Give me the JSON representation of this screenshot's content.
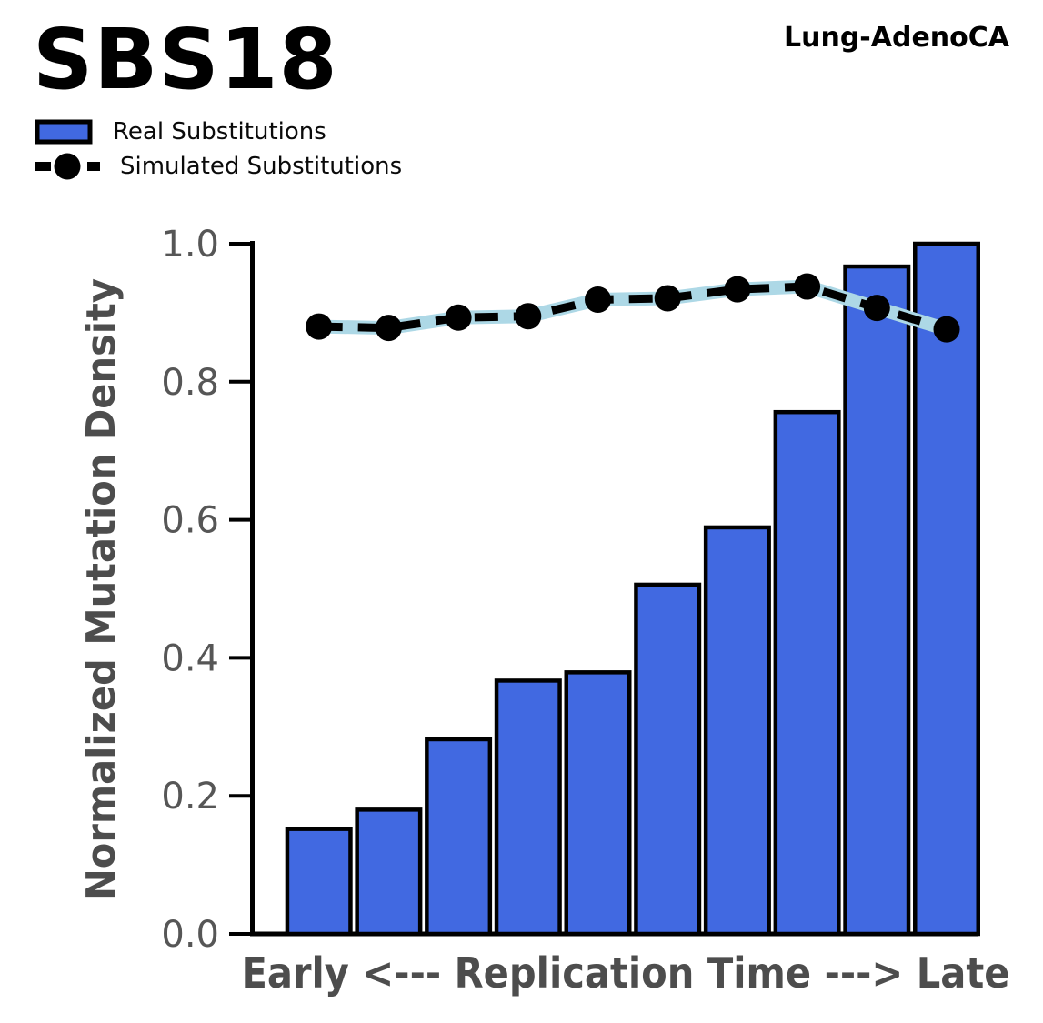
{
  "header": {
    "title": "SBS18",
    "cohort": "Lung-AdenoCA"
  },
  "legend": {
    "real_label": "Real Substitutions",
    "simulated_label": "Simulated Substitutions"
  },
  "colors": {
    "bar_fill": "#4169E1",
    "bar_edge": "#000000",
    "sim_line": "#000000",
    "sim_band": "#ADD8E6",
    "tick_label": "#565656",
    "axis_label": "#4d4d4d",
    "spine": "#000000"
  },
  "chart_data": {
    "type": "bar",
    "title": "SBS18",
    "subtitle": "Lung-AdenoCA",
    "xlabel": "Early <--- Replication Time ---> Late",
    "ylabel": "Normalized Mutation Density",
    "ylim": [
      0.0,
      1.0
    ],
    "yticks": [
      0.0,
      0.2,
      0.4,
      0.6,
      0.8,
      1.0
    ],
    "ytick_labels": [
      "0.0",
      "0.2",
      "0.4",
      "0.6",
      "0.8",
      "1.0"
    ],
    "x": [
      1,
      2,
      3,
      4,
      5,
      6,
      7,
      8,
      9,
      10
    ],
    "grid": false,
    "legend_position": "upper-left-outside",
    "series": [
      {
        "name": "Real Substitutions",
        "type": "bar",
        "values": [
          0.152,
          0.18,
          0.282,
          0.367,
          0.379,
          0.506,
          0.589,
          0.756,
          0.967,
          1.0
        ]
      },
      {
        "name": "Simulated Substitutions",
        "type": "line-dashed-markers-with-band",
        "values": [
          0.88,
          0.878,
          0.893,
          0.895,
          0.919,
          0.921,
          0.934,
          0.938,
          0.907,
          0.876
        ]
      }
    ]
  }
}
